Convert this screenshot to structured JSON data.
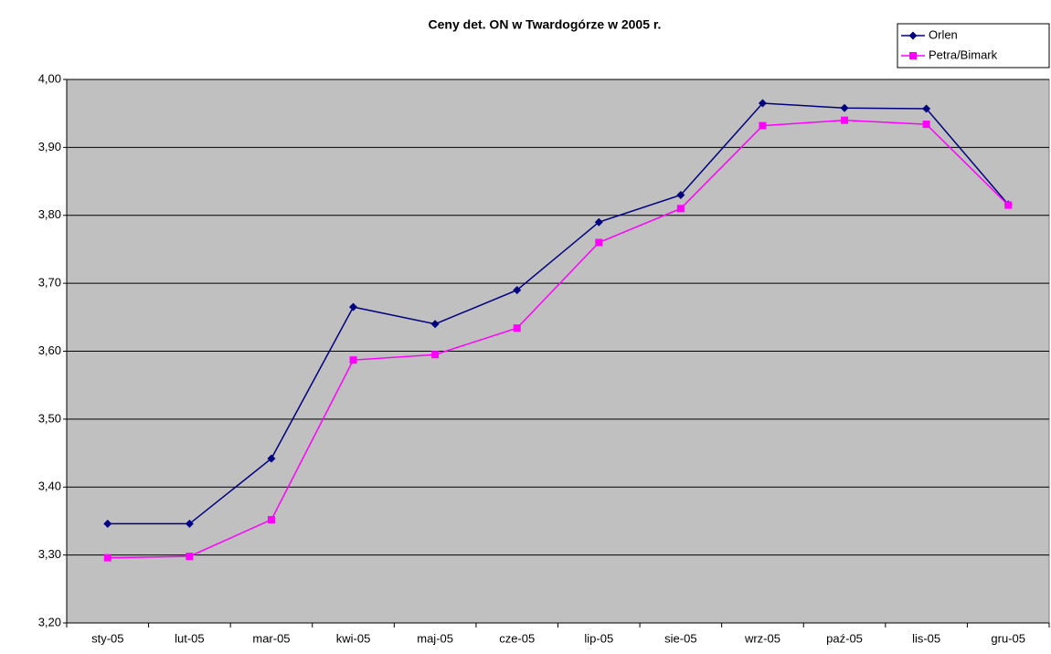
{
  "chart_data": {
    "type": "line",
    "title": "Ceny det. ON w Twardogórze w 2005 r.",
    "categories": [
      "sty-05",
      "lut-05",
      "mar-05",
      "kwi-05",
      "maj-05",
      "cze-05",
      "lip-05",
      "sie-05",
      "wrz-05",
      "paź-05",
      "lis-05",
      "gru-05"
    ],
    "series": [
      {
        "name": "Orlen",
        "color": "#000080",
        "marker": "diamond",
        "values": [
          3.346,
          3.346,
          3.442,
          3.665,
          3.64,
          3.69,
          3.79,
          3.83,
          3.965,
          3.958,
          3.957,
          3.816
        ]
      },
      {
        "name": "Petra/Bimark",
        "color": "#ff00ff",
        "marker": "square",
        "values": [
          3.296,
          3.298,
          3.352,
          3.587,
          3.595,
          3.634,
          3.76,
          3.81,
          3.932,
          3.94,
          3.934,
          3.815
        ]
      }
    ],
    "ylim": [
      3.2,
      4.0
    ],
    "yticks": [
      {
        "value": 3.2,
        "label": "3,20"
      },
      {
        "value": 3.3,
        "label": "3,30"
      },
      {
        "value": 3.4,
        "label": "3,40"
      },
      {
        "value": 3.5,
        "label": "3,50"
      },
      {
        "value": 3.6,
        "label": "3,60"
      },
      {
        "value": 3.7,
        "label": "3,70"
      },
      {
        "value": 3.8,
        "label": "3,80"
      },
      {
        "value": 3.9,
        "label": "3,90"
      },
      {
        "value": 4.0,
        "label": "4,00"
      }
    ],
    "grid": true,
    "legend": "top-right",
    "plot_background": "#c0c0c0"
  }
}
